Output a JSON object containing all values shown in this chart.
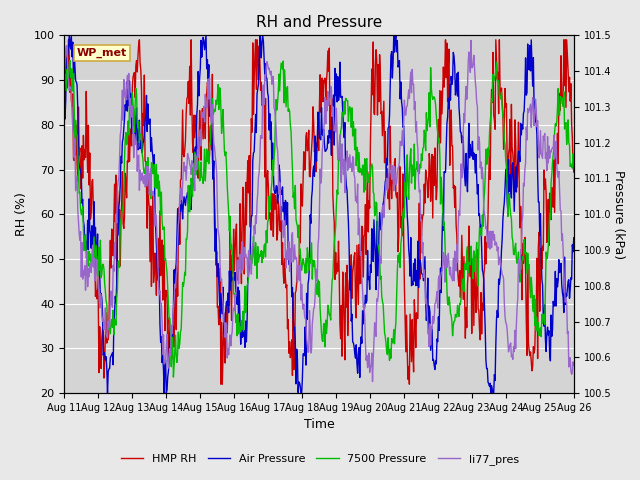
{
  "title": "RH and Pressure",
  "xlabel": "Time",
  "ylabel_left": "RH (%)",
  "ylabel_right": "Pressure (kPa)",
  "ylim_left": [
    20,
    100
  ],
  "ylim_right": [
    100.5,
    101.5
  ],
  "background_color": "#e8e8e8",
  "plot_bg_color": "#d4d4d4",
  "x_ticks": [
    "Aug 11",
    "Aug 12",
    "Aug 13",
    "Aug 14",
    "Aug 15",
    "Aug 16",
    "Aug 17",
    "Aug 18",
    "Aug 19",
    "Aug 20",
    "Aug 21",
    "Aug 22",
    "Aug 23",
    "Aug 24",
    "Aug 25",
    "Aug 26"
  ],
  "legend_labels": [
    "HMP RH",
    "Air Pressure",
    "7500 Pressure",
    "li77_pres"
  ],
  "legend_colors": [
    "#cc0000",
    "#0000cc",
    "#00bb00",
    "#9966cc"
  ],
  "annotation_text": "WP_met",
  "annotation_color": "#8b0000",
  "annotation_bg": "#ffffcc",
  "annotation_border": "#ccaa44",
  "n_points": 720,
  "seed": 42,
  "line_width": 1.0,
  "figsize": [
    6.4,
    4.8
  ],
  "dpi": 100,
  "title_fontsize": 11,
  "label_fontsize": 9,
  "tick_fontsize": 8,
  "legend_fontsize": 8
}
